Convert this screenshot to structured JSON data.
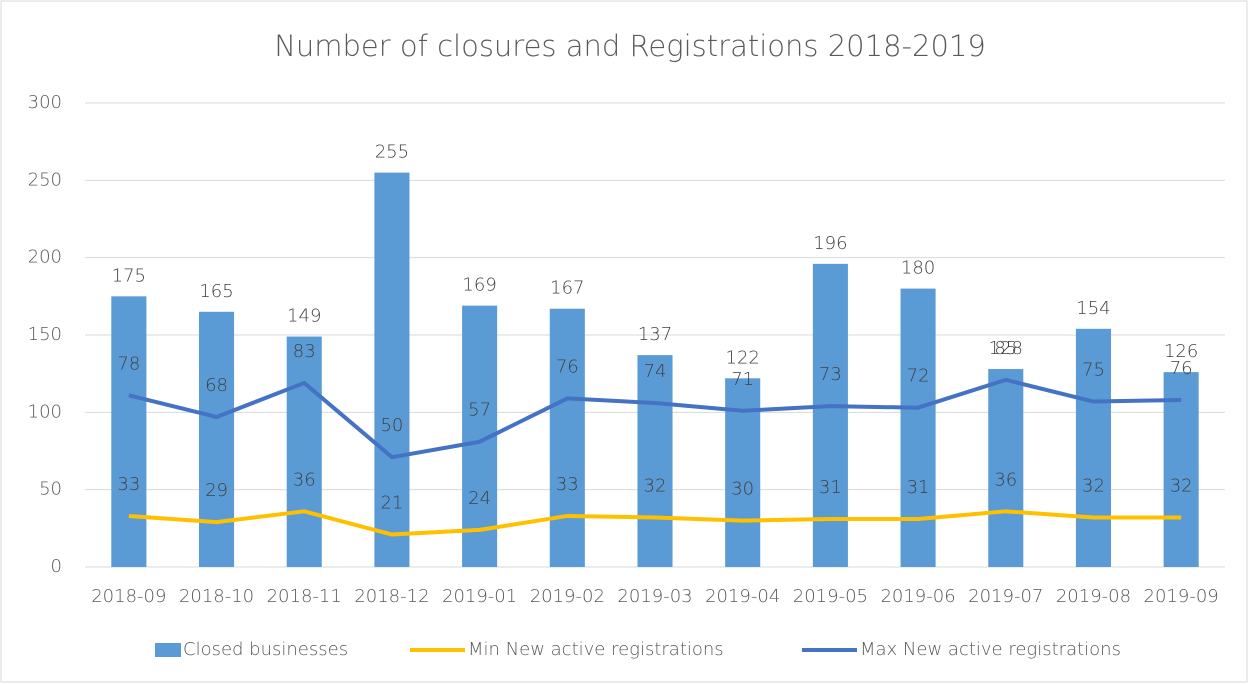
{
  "chart_data": {
    "type": "bar-line",
    "title": "Number of closures and Registrations 2018-2019",
    "categories": [
      "2018-09",
      "2018-10",
      "2018-11",
      "2018-12",
      "2019-01",
      "2019-02",
      "2019-03",
      "2019-04",
      "2019-05",
      "2019-06",
      "2019-07",
      "2019-08",
      "2019-09"
    ],
    "series": [
      {
        "name": "Closed businesses",
        "type": "bar",
        "color": "#5b9bd5",
        "values": [
          175,
          165,
          149,
          255,
          169,
          167,
          137,
          122,
          196,
          180,
          128,
          154,
          126
        ]
      },
      {
        "name": "Min New active registrations",
        "type": "line",
        "color": "#ffc000",
        "values": [
          33,
          29,
          36,
          21,
          24,
          33,
          32,
          30,
          31,
          31,
          36,
          32,
          32
        ]
      },
      {
        "name": "Max New active registrations",
        "type": "line",
        "color": "#4472c4",
        "values": [
          78,
          68,
          83,
          50,
          57,
          76,
          74,
          71,
          73,
          72,
          85,
          75,
          76
        ]
      }
    ],
    "line_stacking": true,
    "ylim": [
      0,
      300
    ],
    "yticks": [
      0,
      50,
      100,
      150,
      200,
      250,
      300
    ],
    "grid": true,
    "legend": "bottom"
  }
}
